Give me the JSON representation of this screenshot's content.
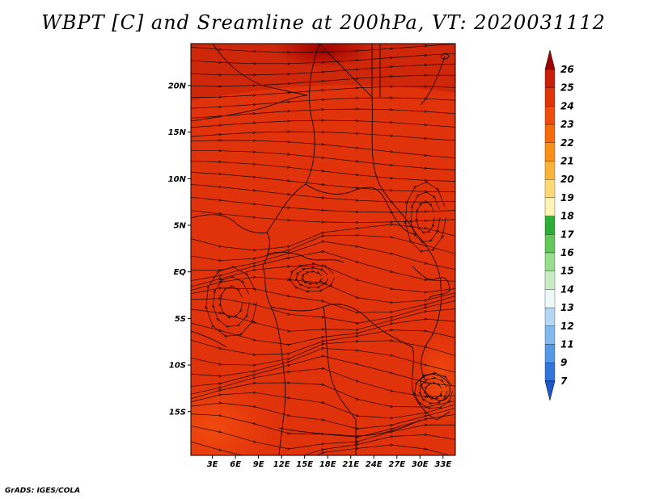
{
  "title": "WBPT [C] and Sreamline at 200hPa, VT: 2020031112",
  "credit": "GrADS: IGES/COLA",
  "map": {
    "lat_labels": [
      "20N",
      "15N",
      "10N",
      "5N",
      "EQ",
      "5S",
      "10S",
      "15S"
    ],
    "lon_labels": [
      "3E",
      "6E",
      "9E",
      "12E",
      "15E",
      "18E",
      "21E",
      "24E",
      "27E",
      "30E",
      "33E"
    ],
    "lat_values": [
      20,
      15,
      10,
      5,
      0,
      -5,
      -10,
      -15
    ],
    "lon_values": [
      3,
      6,
      9,
      12,
      15,
      18,
      21,
      24,
      27,
      30,
      33
    ],
    "lat_range": [
      -19.7,
      24.5
    ],
    "lon_range": [
      0.2,
      34.6
    ],
    "field_color_dominant": "#E0300A",
    "field_color_high": "#B81A0A",
    "field_color_low": "#F04810"
  },
  "colorbar": {
    "labels": [
      "26",
      "25",
      "24",
      "23",
      "22",
      "21",
      "20",
      "19",
      "18",
      "17",
      "16",
      "15",
      "14",
      "13",
      "12",
      "11",
      "9",
      "7"
    ],
    "colors": [
      "#A00000",
      "#C81E0A",
      "#E0340A",
      "#F04C0F",
      "#F66A0C",
      "#F8901A",
      "#FAB43A",
      "#FDD876",
      "#FDF3B4",
      "#2EAE36",
      "#62C85A",
      "#98DC8E",
      "#C8ECC4",
      "#EEF8F6",
      "#B4D8F4",
      "#82BAEE",
      "#5498E6",
      "#3276DC",
      "#1E56CC"
    ]
  }
}
